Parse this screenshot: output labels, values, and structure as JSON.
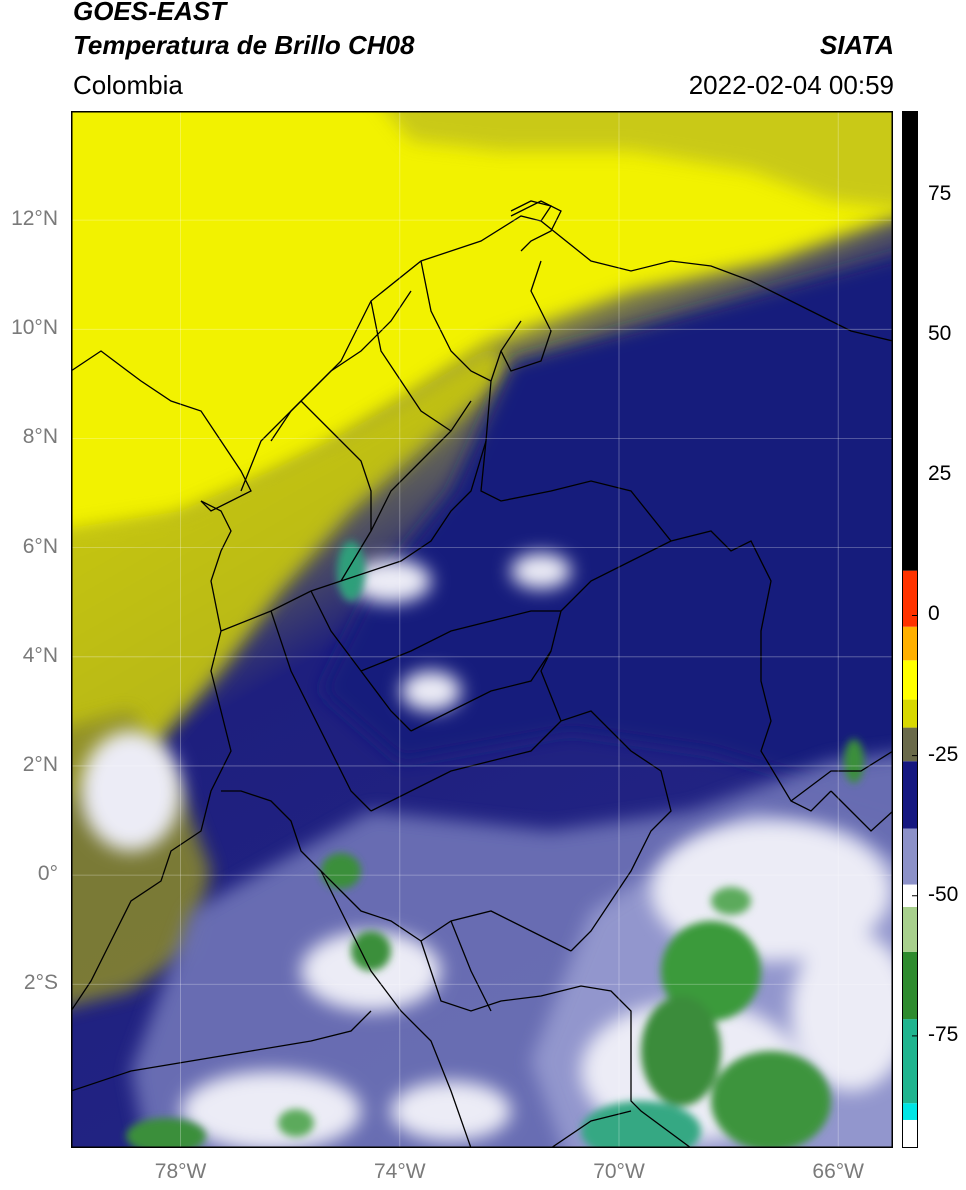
{
  "header": {
    "line1": "GOES-EAST",
    "line2": "Temperatura de Brillo CH08",
    "region": "Colombia",
    "source": "SIATA",
    "datetime": "2022-02-04 00:59"
  },
  "map": {
    "lon_range": [
      -80,
      -65
    ],
    "lat_range": [
      -5,
      14
    ],
    "lat_ticks": [
      {
        "value": 12,
        "label": "12°N"
      },
      {
        "value": 10,
        "label": "10°N"
      },
      {
        "value": 8,
        "label": "8°N"
      },
      {
        "value": 6,
        "label": "6°N"
      },
      {
        "value": 4,
        "label": "4°N"
      },
      {
        "value": 2,
        "label": "2°N"
      },
      {
        "value": 0,
        "label": "0°"
      },
      {
        "value": -2,
        "label": "2°S"
      }
    ],
    "lon_ticks": [
      {
        "value": -78,
        "label": "78°W"
      },
      {
        "value": -74,
        "label": "74°W"
      },
      {
        "value": -70,
        "label": "70°W"
      },
      {
        "value": -66,
        "label": "66°W"
      }
    ],
    "grid": true
  },
  "colorbar": {
    "range": [
      -95,
      90
    ],
    "ticks": [
      {
        "value": 75,
        "label": "75"
      },
      {
        "value": 50,
        "label": "50"
      },
      {
        "value": 25,
        "label": "25"
      },
      {
        "value": 0,
        "label": "0"
      },
      {
        "value": -25,
        "label": "-25"
      },
      {
        "value": -50,
        "label": "-50"
      },
      {
        "value": -75,
        "label": "-75"
      }
    ],
    "segments": [
      {
        "from": -95,
        "to": -90,
        "color": "#ffffff"
      },
      {
        "from": -90,
        "to": -87,
        "color": "#00e5e5"
      },
      {
        "from": -87,
        "to": -72,
        "color": "#1fb58f"
      },
      {
        "from": -72,
        "to": -60,
        "color": "#2e8b2e"
      },
      {
        "from": -60,
        "to": -52,
        "color": "#a8d08d"
      },
      {
        "from": -52,
        "to": -48,
        "color": "#ffffff"
      },
      {
        "from": -48,
        "to": -38,
        "color": "#8c91c8"
      },
      {
        "from": -38,
        "to": -26,
        "color": "#151780"
      },
      {
        "from": -26,
        "to": -20,
        "color": "#6b6b4a"
      },
      {
        "from": -20,
        "to": -15,
        "color": "#d8d800"
      },
      {
        "from": -15,
        "to": -8,
        "color": "#ffff00"
      },
      {
        "from": -8,
        "to": -2,
        "color": "#ffb000"
      },
      {
        "from": -2,
        "to": 8,
        "color": "#ff3300"
      },
      {
        "from": 8,
        "to": 90,
        "color": "#000000"
      }
    ]
  }
}
